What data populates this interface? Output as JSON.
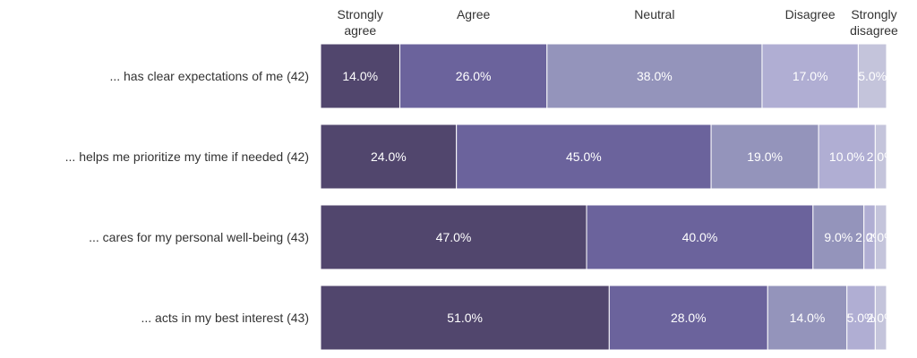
{
  "chart_data": {
    "type": "bar",
    "orientation": "horizontal",
    "stacked": true,
    "categories": [
      "... has clear expectations of me (42)",
      "... helps me prioritize my time if needed (42)",
      "... cares for my personal well-being (43)",
      "... acts in my best interest (43)"
    ],
    "series": [
      {
        "name": "Strongly agree",
        "color": "#51466d",
        "values": [
          14,
          24,
          47,
          51
        ],
        "labels": [
          "14.0%",
          "24.0%",
          "47.0%",
          "51.0%"
        ]
      },
      {
        "name": "Agree",
        "color": "#6b639c",
        "values": [
          26,
          45,
          40,
          28
        ],
        "labels": [
          "26.0%",
          "45.0%",
          "40.0%",
          "28.0%"
        ]
      },
      {
        "name": "Neutral",
        "color": "#9494bb",
        "values": [
          38,
          19,
          9,
          14
        ],
        "labels": [
          "38.0%",
          "19.0%",
          "9.0%",
          "14.0%"
        ]
      },
      {
        "name": "Disagree",
        "color": "#b0aed3",
        "values": [
          17,
          10,
          2,
          5
        ],
        "labels": [
          "17.0%",
          "10.0%",
          "2.0%",
          "5.0%"
        ]
      },
      {
        "name": "Strongly disagree",
        "color": "#c4c4db",
        "values": [
          5,
          2,
          2,
          2
        ],
        "labels": [
          "5.0%",
          "2.0%",
          "2.0%",
          "2.0%"
        ]
      }
    ],
    "column_headers": [
      [
        "Strongly",
        "agree"
      ],
      [
        "Agree"
      ],
      [
        "Neutral"
      ],
      [
        "Disagree"
      ],
      [
        "Strongly",
        "disagree"
      ]
    ],
    "title": "",
    "xlabel": "",
    "ylabel": "",
    "grid": false
  }
}
